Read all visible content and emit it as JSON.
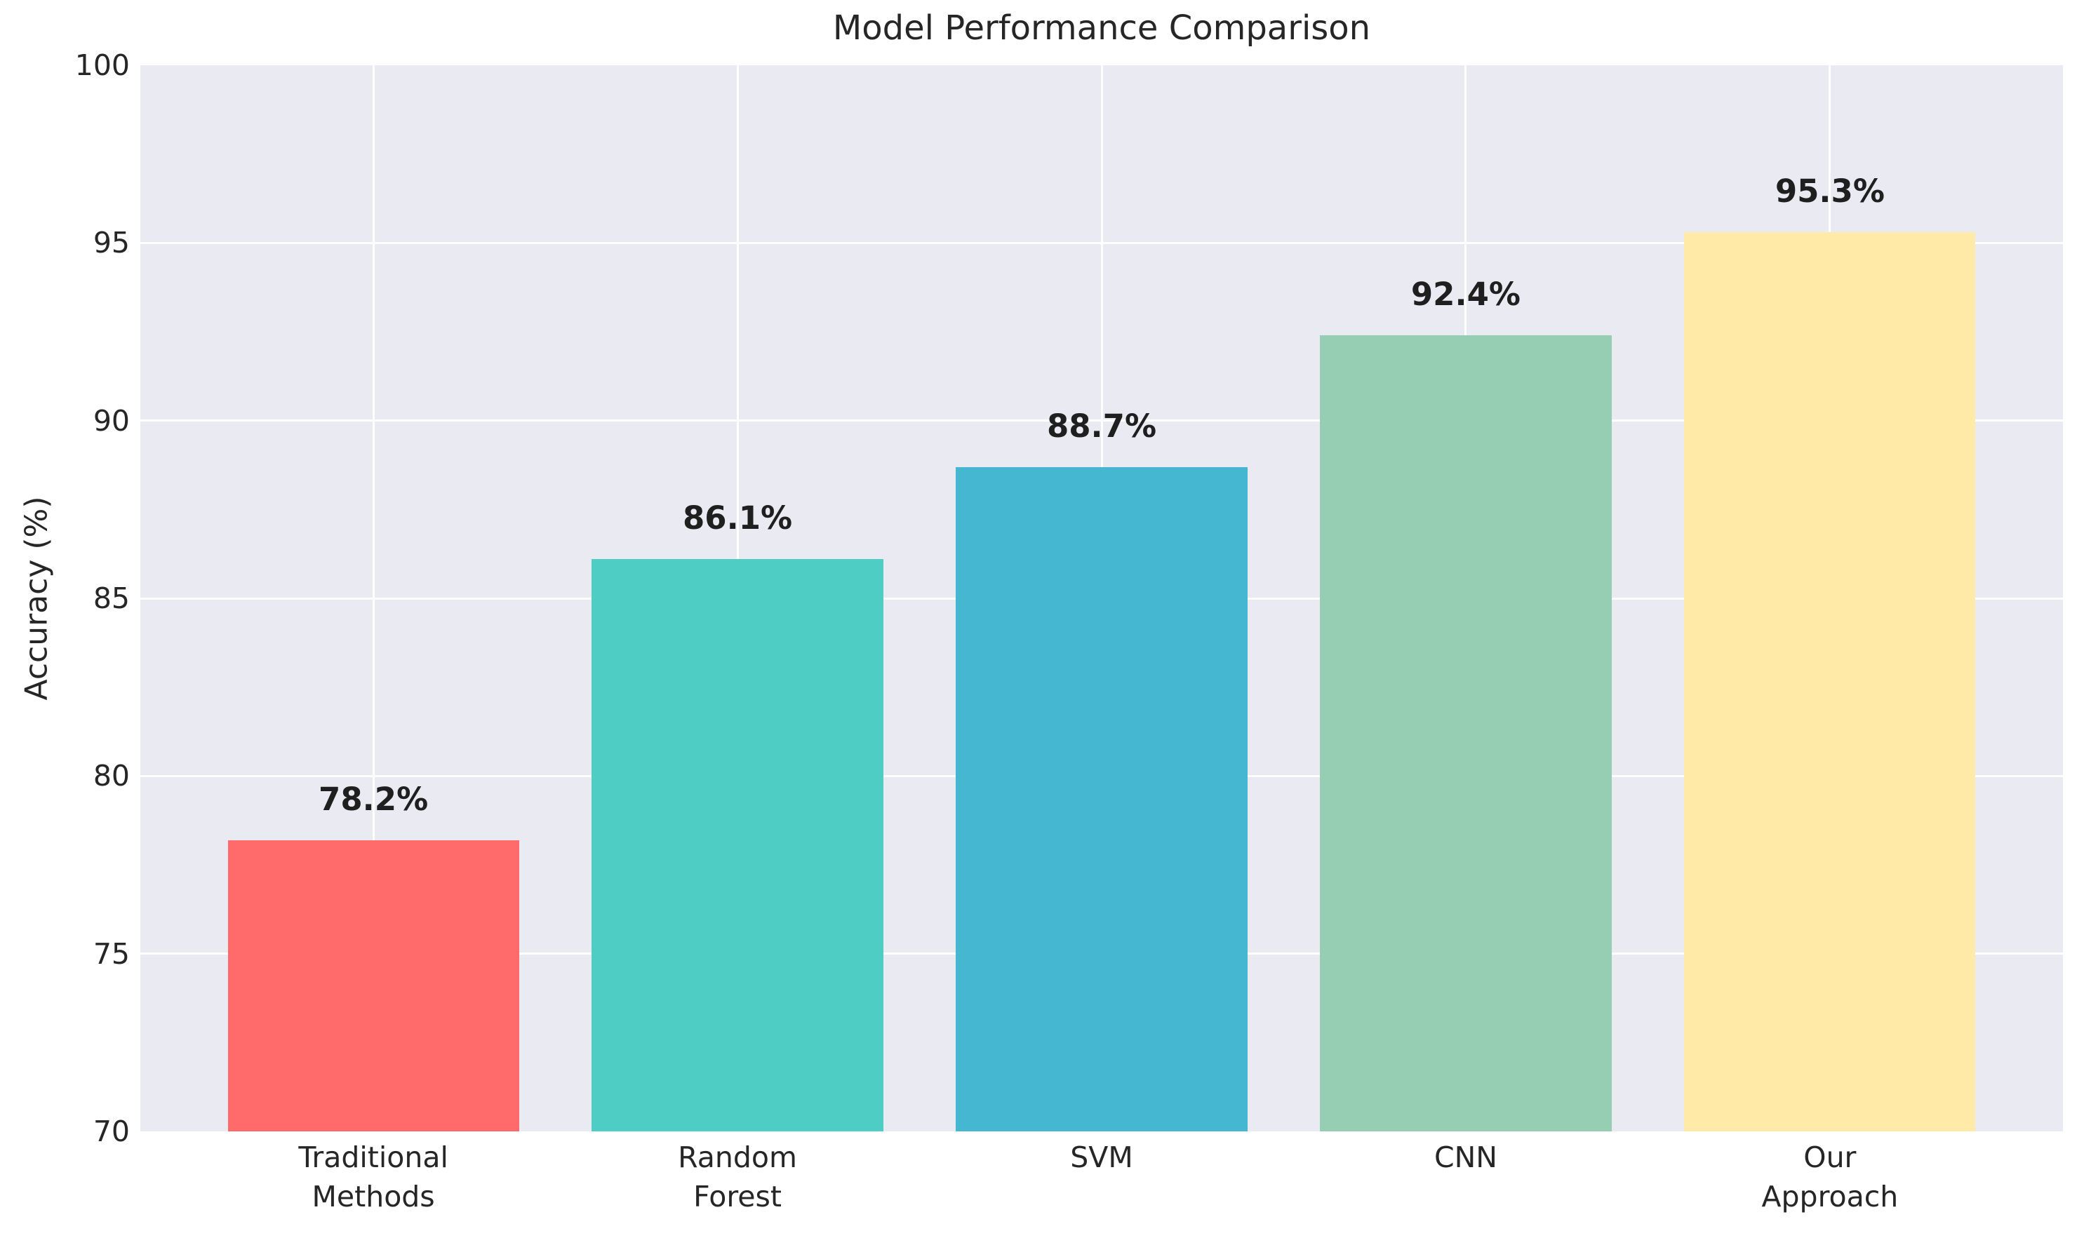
{
  "chart_data": {
    "type": "bar",
    "title": "Model Performance Comparison",
    "ylabel": "Accuracy (%)",
    "xlabel": "",
    "ylim": [
      70,
      100
    ],
    "yticks": [
      70,
      75,
      80,
      85,
      90,
      95,
      100
    ],
    "grid": true,
    "legend_position": "none",
    "categories": [
      "Traditional Methods",
      "Random Forest",
      "SVM",
      "CNN",
      "Our Approach"
    ],
    "category_label_lines": [
      [
        "Traditional",
        "Methods"
      ],
      [
        "Random",
        "Forest"
      ],
      [
        "SVM"
      ],
      [
        "CNN"
      ],
      [
        "Our",
        "Approach"
      ]
    ],
    "values": [
      78.2,
      86.1,
      88.7,
      92.4,
      95.3
    ],
    "value_labels": [
      "78.2%",
      "86.1%",
      "88.7%",
      "92.4%",
      "95.3%"
    ],
    "bar_colors": [
      "#FF6B6B",
      "#4ECDC4",
      "#45B7D1",
      "#96CEB4",
      "#FFEAA7"
    ],
    "colors": {
      "plot_background": "#EAEAF2",
      "gridline": "#FFFFFF",
      "tick_text": "#262626",
      "title_text": "#262626",
      "value_label_text": "#1F1F1F"
    }
  }
}
